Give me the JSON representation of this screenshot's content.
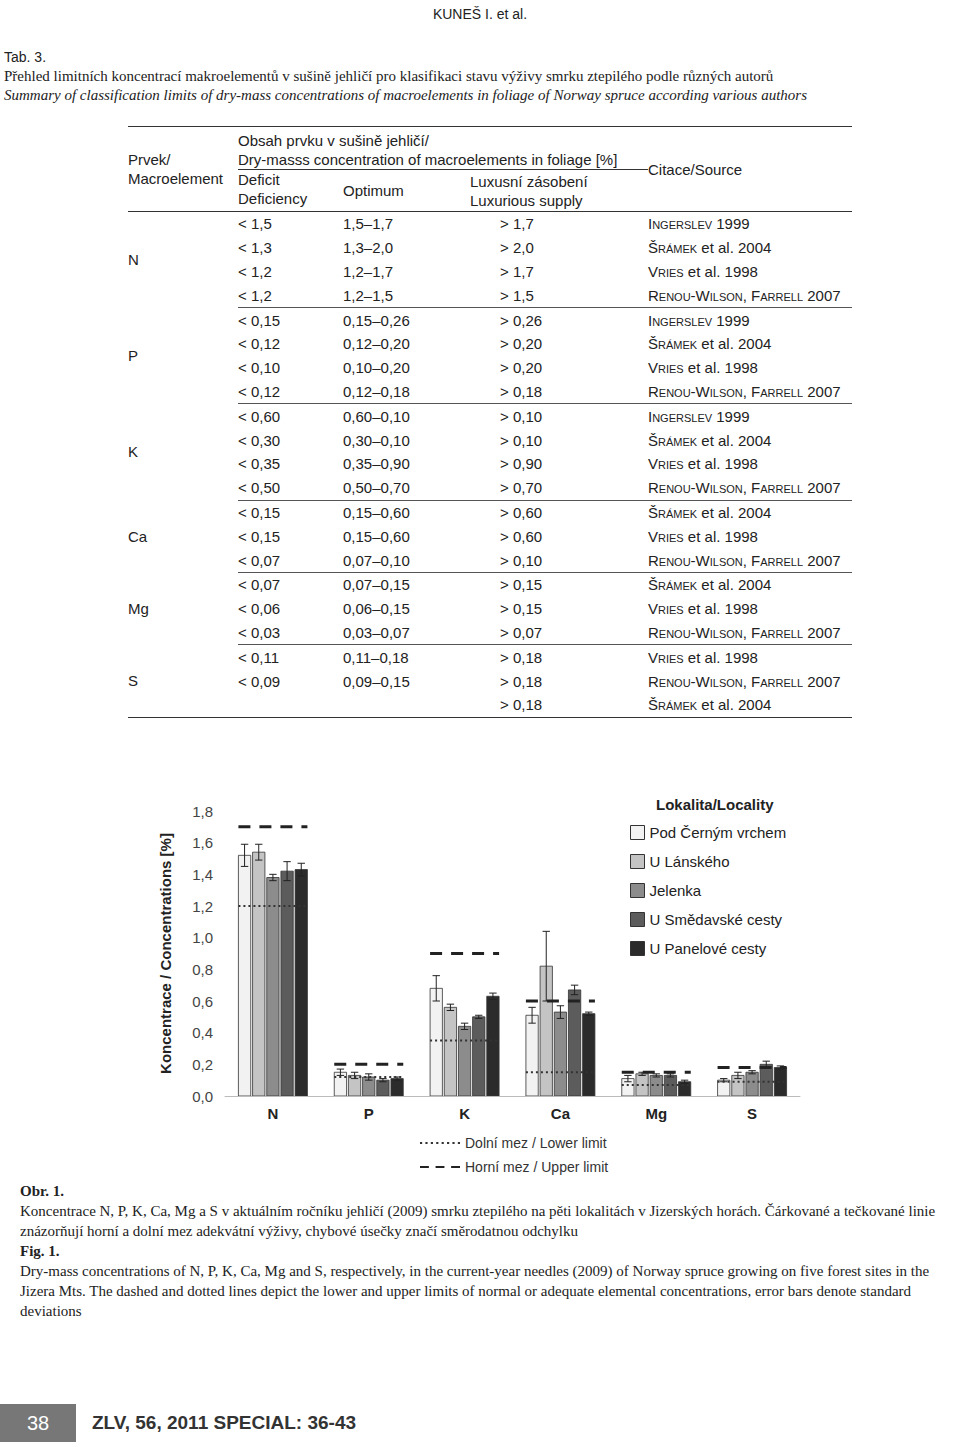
{
  "header": {
    "running_head": "KUNEŠ I. et al."
  },
  "table_caption": {
    "label": "Tab. 3.",
    "cs": "Přehled limitních koncentrací makroelementů v sušině jehličí pro klasifikaci stavu výživy smrku ztepilého podle různých autorů",
    "en": "Summary of classification limits of dry-mass concentrations of macroelements in foliage of Norway spruce according various authors"
  },
  "table": {
    "head": {
      "element": [
        "Prvek/",
        "Macroelement"
      ],
      "concentration": [
        "Obsah prvku v sušině jehličí/",
        "Dry-masss concentration of macroelements in foliage [%]"
      ],
      "deficit": [
        "Deficit",
        "Deficiency"
      ],
      "optimum": "Optimum",
      "luxury": [
        "Luxusní zásobení",
        "Luxurious supply"
      ],
      "source": "Citace/Source"
    },
    "groups": [
      {
        "element": "N",
        "rows": [
          [
            "< 1,5",
            "1,5–1,7",
            "> 1,7",
            "Ingerslev",
            "1999"
          ],
          [
            "< 1,3",
            "1,3–2,0",
            "> 2,0",
            "Šrámek",
            "et al. 2004"
          ],
          [
            "< 1,2",
            "1,2–1,7",
            "> 1,7",
            "Vries",
            "et al. 1998"
          ],
          [
            "< 1,2",
            "1,2–1,5",
            "> 1,5",
            "Renou-Wilson, Farrell",
            "2007"
          ]
        ]
      },
      {
        "element": "P",
        "rows": [
          [
            "< 0,15",
            "0,15–0,26",
            "> 0,26",
            "Ingerslev",
            "1999"
          ],
          [
            "< 0,12",
            "0,12–0,20",
            "> 0,20",
            "Šrámek",
            "et al. 2004"
          ],
          [
            "< 0,10",
            "0,10–0,20",
            "> 0,20",
            "Vries",
            "et al. 1998"
          ],
          [
            "< 0,12",
            "0,12–0,18",
            "> 0,18",
            "Renou-Wilson, Farrell",
            "2007"
          ]
        ]
      },
      {
        "element": "K",
        "rows": [
          [
            "< 0,60",
            "0,60–0,10",
            "> 0,10",
            "Ingerslev",
            "1999"
          ],
          [
            "< 0,30",
            "0,30–0,10",
            "> 0,10",
            "Šrámek",
            "et al. 2004"
          ],
          [
            "< 0,35",
            "0,35–0,90",
            "> 0,90",
            "Vries",
            "et al. 1998"
          ],
          [
            "< 0,50",
            "0,50–0,70",
            "> 0,70",
            "Renou-Wilson, Farrell",
            "2007"
          ]
        ]
      },
      {
        "element": "Ca",
        "rows": [
          [
            "< 0,15",
            "0,15–0,60",
            "> 0,60",
            "Šrámek",
            "et al. 2004"
          ],
          [
            "< 0,15",
            "0,15–0,60",
            "> 0,60",
            "Vries",
            "et al. 1998"
          ],
          [
            "< 0,07",
            "0,07–0,10",
            "> 0,10",
            "Renou-Wilson, Farrell",
            "2007"
          ]
        ]
      },
      {
        "element": "Mg",
        "rows": [
          [
            "< 0,07",
            "0,07–0,15",
            "> 0,15",
            "Šrámek",
            "et al. 2004"
          ],
          [
            "< 0,06",
            "0,06–0,15",
            "> 0,15",
            "Vries",
            "et al. 1998"
          ],
          [
            "< 0,03",
            "0,03–0,07",
            "> 0,07",
            "Renou-Wilson, Farrell",
            "2007"
          ]
        ]
      },
      {
        "element": "S",
        "rows": [
          [
            "< 0,11",
            "0,11–0,18",
            "> 0,18",
            "Vries",
            "et al. 1998"
          ],
          [
            "< 0,09",
            "0,09–0,15",
            "> 0,18",
            "Renou-Wilson, Farrell",
            "2007"
          ],
          [
            null,
            null,
            "> 0,18",
            "Šrámek",
            "et al. 2004"
          ]
        ]
      }
    ]
  },
  "chart_data": {
    "type": "bar",
    "y_label": "Koncentrace / Concentrations [%]",
    "legend_title": "Lokalita/Locality",
    "legend": "upper right",
    "grid": false,
    "categories": [
      "N",
      "P",
      "K",
      "Ca",
      "Mg",
      "S"
    ],
    "ylim": [
      0,
      1.8
    ],
    "yticks": [
      {
        "value": 0,
        "label": "0,0"
      },
      {
        "value": 0.2,
        "label": "0,2"
      },
      {
        "value": 0.4,
        "label": "0,4"
      },
      {
        "value": 0.6,
        "label": "0,6"
      },
      {
        "value": 0.8,
        "label": "0,8"
      },
      {
        "value": 1.0,
        "label": "1,0"
      },
      {
        "value": 1.2,
        "label": "1,2"
      },
      {
        "value": 1.4,
        "label": "1,4"
      },
      {
        "value": 1.6,
        "label": "1,6"
      },
      {
        "value": 1.8,
        "label": "1,8"
      }
    ],
    "series": [
      {
        "name": "Pod Černým vrchem",
        "color": "#f2f2f2",
        "values": [
          1.52,
          0.15,
          0.68,
          0.51,
          0.11,
          0.1
        ],
        "errors": [
          0.07,
          0.02,
          0.08,
          0.05,
          0.02,
          0.01
        ]
      },
      {
        "name": "U Lánského",
        "color": "#c4c4c4",
        "values": [
          1.54,
          0.13,
          0.56,
          0.82,
          0.14,
          0.13
        ],
        "errors": [
          0.05,
          0.02,
          0.02,
          0.22,
          0.01,
          0.02
        ]
      },
      {
        "name": "Jelenka",
        "color": "#8c8c8c",
        "values": [
          1.38,
          0.12,
          0.44,
          0.53,
          0.13,
          0.15
        ],
        "errors": [
          0.02,
          0.02,
          0.02,
          0.04,
          0.01,
          0.01
        ]
      },
      {
        "name": "U Smědavské cesty",
        "color": "#5c5c5c",
        "values": [
          1.42,
          0.1,
          0.5,
          0.67,
          0.13,
          0.2
        ],
        "errors": [
          0.06,
          0.01,
          0.01,
          0.03,
          0.01,
          0.02
        ]
      },
      {
        "name": "U Panelové cesty",
        "color": "#2b2b2b",
        "values": [
          1.43,
          0.11,
          0.63,
          0.52,
          0.09,
          0.18
        ],
        "errors": [
          0.04,
          0.01,
          0.02,
          0.01,
          0.01,
          0.01
        ]
      }
    ],
    "limits": [
      {
        "name": "Dolní mez / Lower limit",
        "line_style": "dotted",
        "color": "#333333",
        "values": [
          1.2,
          0.12,
          0.35,
          0.15,
          0.07,
          0.09
        ]
      },
      {
        "name": "Horní mez / Upper limit",
        "line_style": "dashed",
        "color": "#222222",
        "values": [
          1.7,
          0.2,
          0.9,
          0.6,
          0.15,
          0.18
        ]
      }
    ]
  },
  "figure_caption": {
    "label_cs": "Obr. 1.",
    "text_cs": "Koncentrace N, P, K, Ca, Mg a S v aktuálním ročníku jehličí (2009) smrku ztepilého na pěti lokalitách v Jizerských horách. Čárkované a tečkované linie znázorňují horní a dolní mez adekvátní výživy, chybové úsečky značí směrodatnou odchylku",
    "label_en": "Fig. 1.",
    "text_en": "Dry-mass concentrations of N, P, K, Ca, Mg and S, respectively, in the current-year needles (2009) of Norway spruce growing on five forest sites in the Jizera Mts. The dashed and dotted lines depict the lower and upper limits of normal or adequate elemental concentrations, error bars denote standard deviations"
  },
  "footer": {
    "page": "38",
    "journal": "ZLV, 56, 2011 SPECIAL: 36-43"
  }
}
